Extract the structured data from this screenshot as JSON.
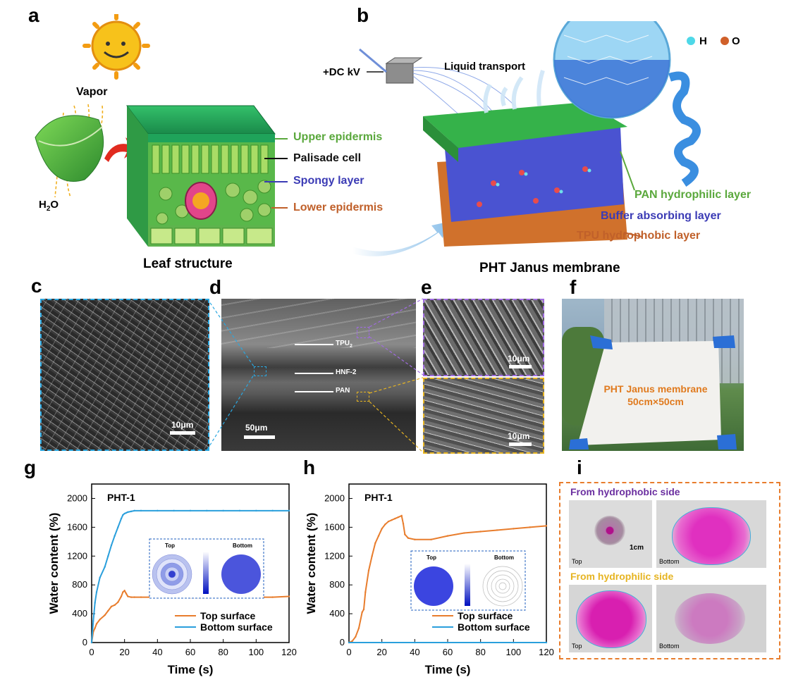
{
  "panels": {
    "a": "a",
    "b": "b",
    "c": "c",
    "d": "d",
    "e": "e",
    "f": "f",
    "g": "g",
    "h": "h",
    "i": "i"
  },
  "panel_a": {
    "vapor": "Vapor",
    "h2o": "H",
    "h2o_sub": "2",
    "h2o_end": "O",
    "upper": "Upper epidermis",
    "palisade": "Palisade cell",
    "spongy": "Spongy layer",
    "lower": "Lower epidermis",
    "caption": "Leaf structure"
  },
  "panel_b": {
    "dc": "+DC kV",
    "liquid": "Liquid transport",
    "legend_h": "H",
    "legend_o": "O",
    "pan": "PAN hydrophilic layer",
    "buffer": "Buffer absorbing layer",
    "tpu": "TPU hydrophobic layer",
    "caption": "PHT Janus membrane"
  },
  "panel_c": {
    "scale": "10μm"
  },
  "panel_d": {
    "tpu": "TPU",
    "tpu_sub": "2",
    "hnf": "HNF-2",
    "pan": "PAN",
    "scale": "50μm"
  },
  "panel_e": {
    "scale_top": "10μm",
    "scale_bottom": "10μm"
  },
  "panel_f": {
    "line1": "PHT Janus membrane",
    "line2": "50cm×50cm"
  },
  "panel_i": {
    "title_hydrophobic": "From hydrophobic side",
    "title_hydrophilic": "From hydrophilic side",
    "top": "Top",
    "bottom": "Bottom",
    "scale": "1cm",
    "top2": "Top",
    "bottom2": "Bottom"
  },
  "colors": {
    "orange": "#e87d2d",
    "blue": "#2a9fdc",
    "green": "#5aa83c",
    "purple": "#6b2fa0",
    "yellow": "#e6b422"
  },
  "chart_data": [
    {
      "type": "line",
      "panel": "g",
      "title": "PHT-1",
      "xlabel": "Time (s)",
      "ylabel": "Water content (%)",
      "xlim": [
        0,
        120
      ],
      "ylim": [
        0,
        2200
      ],
      "xticks": [
        0,
        20,
        40,
        60,
        80,
        100,
        120
      ],
      "yticks": [
        0,
        400,
        800,
        1200,
        1600,
        2000
      ],
      "inset_labels": [
        "Top",
        "Bottom"
      ],
      "series": [
        {
          "name": "Top surface",
          "color": "#e87d2d",
          "x": [
            0,
            1,
            2,
            3,
            5,
            8,
            10,
            12,
            14,
            16,
            18,
            19,
            20,
            21,
            22,
            24,
            26,
            30,
            40,
            50,
            60,
            70,
            80,
            90,
            100,
            110,
            120
          ],
          "y": [
            0,
            150,
            200,
            260,
            320,
            380,
            440,
            500,
            520,
            560,
            640,
            700,
            720,
            680,
            640,
            630,
            630,
            630,
            630,
            630,
            625,
            625,
            630,
            635,
            630,
            630,
            640
          ]
        },
        {
          "name": "Bottom surface",
          "color": "#2a9fdc",
          "x": [
            0,
            1,
            2,
            3,
            5,
            8,
            10,
            12,
            14,
            16,
            18,
            19,
            20,
            21,
            22,
            24,
            26,
            30,
            40,
            50,
            60,
            70,
            80,
            90,
            100,
            110,
            120
          ],
          "y": [
            0,
            300,
            550,
            700,
            900,
            1050,
            1200,
            1350,
            1480,
            1600,
            1720,
            1770,
            1790,
            1800,
            1810,
            1820,
            1830,
            1830,
            1830,
            1830,
            1830,
            1830,
            1830,
            1830,
            1830,
            1830,
            1830
          ]
        }
      ]
    },
    {
      "type": "line",
      "panel": "h",
      "title": "PHT-1",
      "xlabel": "Time (s)",
      "ylabel": "Water content (%)",
      "xlim": [
        0,
        120
      ],
      "ylim": [
        0,
        2200
      ],
      "xticks": [
        0,
        20,
        40,
        60,
        80,
        100,
        120
      ],
      "yticks": [
        0,
        400,
        800,
        1200,
        1600,
        2000
      ],
      "inset_labels": [
        "Top",
        "Bottom"
      ],
      "series": [
        {
          "name": "Top surface",
          "color": "#e87d2d",
          "x": [
            0,
            2,
            4,
            6,
            8,
            9,
            10,
            12,
            14,
            16,
            18,
            20,
            22,
            24,
            26,
            28,
            30,
            32,
            33,
            34,
            36,
            40,
            50,
            60,
            70,
            80,
            90,
            100,
            110,
            120
          ],
          "y": [
            0,
            20,
            80,
            200,
            420,
            460,
            700,
            1000,
            1200,
            1380,
            1480,
            1580,
            1640,
            1680,
            1700,
            1720,
            1740,
            1760,
            1650,
            1500,
            1450,
            1430,
            1430,
            1480,
            1520,
            1540,
            1560,
            1580,
            1600,
            1620
          ]
        },
        {
          "name": "Bottom surface",
          "color": "#2a9fdc",
          "x": [
            0,
            20,
            40,
            60,
            80,
            100,
            120
          ],
          "y": [
            0,
            0,
            0,
            0,
            0,
            0,
            0
          ]
        }
      ]
    }
  ]
}
